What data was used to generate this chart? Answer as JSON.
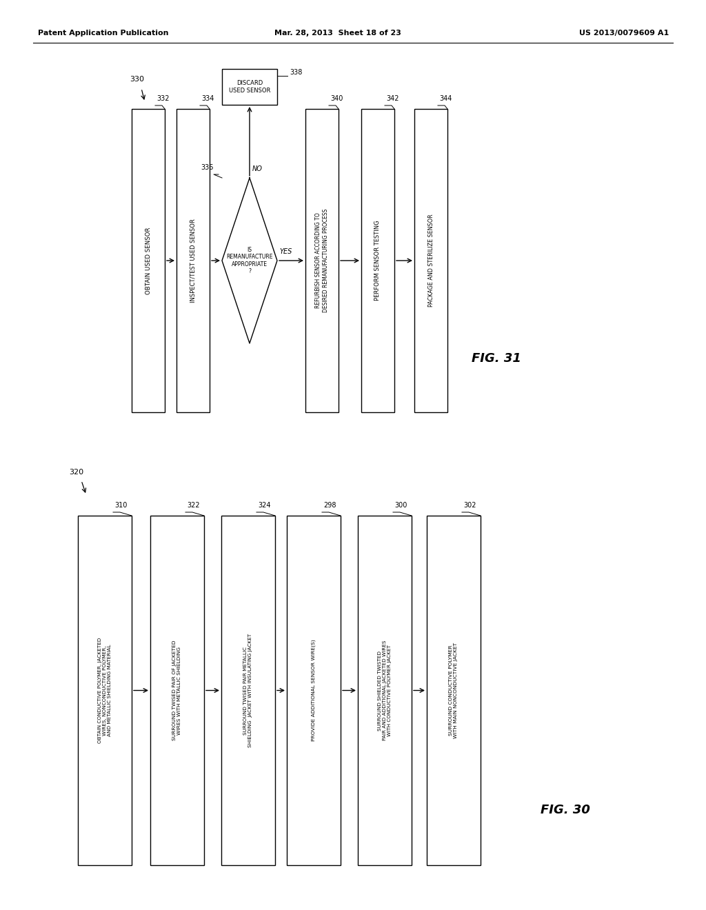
{
  "header_left": "Patent Application Publication",
  "header_mid": "Mar. 28, 2013  Sheet 18 of 23",
  "header_right": "US 2013/0079609 A1",
  "fig30_label": "FIG. 30",
  "fig31_label": "FIG. 31",
  "fig30_ref": "320",
  "fig31_ref": "330",
  "fig30_boxes": [
    {
      "id": "310",
      "text": "OBTAIN CONDUCTIVE POLYMER, JACKETED\nWIRES, NONCONDUCTIVE POLYMER,\nAND METALLIC SHIELDING MATERIAL"
    },
    {
      "id": "322",
      "text": "SURROUND TWISED PAIR OF JACKETED\nWIRES WITH METALLIC SHIELDING"
    },
    {
      "id": "324",
      "text": "SURROUND TWISED PAIR METALLIC\nSHIELDING  JACKET WITH INSULATING JACKET"
    },
    {
      "id": "298",
      "text": "PROVIDE ADDITIONAL SENSOR WIRE(S)"
    },
    {
      "id": "300",
      "text": "SURROUND SHIELDED TWISTED\nPAIR AND ADDITIONAL JACKETED WIRES\nWITH CONDUCTIVE POLYMER JACKET"
    },
    {
      "id": "302",
      "text": "SURROUND CONDUCTIVE POLYMER\nWITH MAIN NONCONDUCTIVE JACKET"
    }
  ],
  "fig31_boxes": [
    {
      "id": "332",
      "text": "OBTAIN USED SENSOR"
    },
    {
      "id": "334",
      "text": "INSPECT/TEST USED SENSOR"
    },
    {
      "id": "340",
      "text": "REFURBISH SENSOR ACCORDING TO\nDESIRED REMANUFACTURING PROCESS"
    },
    {
      "id": "342",
      "text": "PERFORM SENSOR TESTING"
    },
    {
      "id": "344",
      "text": "PACKAGE AND STERILIZE SENSOR"
    }
  ],
  "fig31_diamond": {
    "id": "336",
    "text": "IS\nREMANUFACTURE\nAPPROPRIATE\n?"
  },
  "fig31_discard": {
    "id": "338",
    "text": "DISCARD\nUSED SENSOR"
  },
  "bg_color": "#ffffff",
  "box_edge_color": "#000000",
  "text_color": "#000000",
  "line_color": "#000000"
}
